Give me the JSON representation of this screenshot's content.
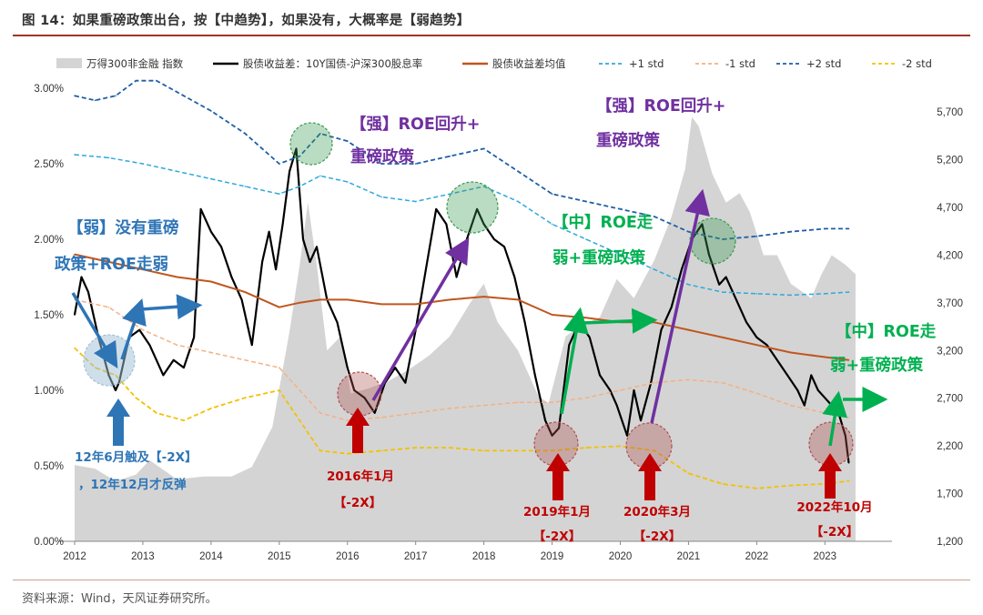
{
  "figure_title": "图 14：如果重磅政策出台，按【中趋势】，如果没有，大概率是【弱趋势】",
  "source": "资料来源：Wind，天风证券研究所。",
  "colors": {
    "area": "#d4d4d4",
    "spread": "#000000",
    "mean": "#c0561e",
    "plus1": "#2ea8dc",
    "minus1": "#f4b183",
    "plus2": "#1f5fa8",
    "minus2": "#f2c200",
    "red_arrow": "#c00000",
    "purple": "#7030a0",
    "green": "#00b050",
    "blue": "#2e75b6"
  },
  "chart_data": {
    "type": "line",
    "x_ticks": [
      "2012",
      "2013",
      "2014",
      "2015",
      "2016",
      "2017",
      "2018",
      "2019",
      "2020",
      "2021",
      "2022",
      "2023"
    ],
    "y_left_ticks": [
      "0.00%",
      "0.50%",
      "1.00%",
      "1.50%",
      "2.00%",
      "2.50%",
      "3.00%"
    ],
    "y_right_ticks": [
      "1,200",
      "1,700",
      "2,200",
      "2,700",
      "3,200",
      "3,700",
      "4,200",
      "4,700",
      "5,200",
      "5,700"
    ],
    "ylim_left": [
      0,
      3.0
    ],
    "ylim_right": [
      1200,
      5950
    ],
    "xlim": [
      2012.0,
      2023.85
    ],
    "legend": [
      "万得300非金融 指数",
      "股债收益差：10Y国债-沪深300股息率",
      "股债收益差均值",
      "+1 std",
      "-1 std",
      "+2 std",
      "-2 std"
    ],
    "series": [
      {
        "name": "万得300非金融 指数",
        "axis": "right",
        "style": "area",
        "x": [
          2012.0,
          2012.3,
          2012.6,
          2012.9,
          2013.1,
          2013.5,
          2013.9,
          2014.3,
          2014.6,
          2014.9,
          2015.0,
          2015.15,
          2015.3,
          2015.42,
          2015.55,
          2015.7,
          2015.9,
          2016.05,
          2016.3,
          2016.6,
          2016.9,
          2017.2,
          2017.5,
          2017.8,
          2018.0,
          2018.2,
          2018.5,
          2018.8,
          2018.95,
          2019.2,
          2019.4,
          2019.7,
          2019.95,
          2020.2,
          2020.5,
          2020.75,
          2020.95,
          2021.05,
          2021.15,
          2021.35,
          2021.55,
          2021.75,
          2021.9,
          2022.1,
          2022.3,
          2022.5,
          2022.8,
          2022.95,
          2023.1,
          2023.3,
          2023.45
        ],
        "y": [
          2000,
          1960,
          1830,
          1900,
          2050,
          1850,
          1880,
          1880,
          1980,
          2400,
          2800,
          3400,
          4100,
          4750,
          4100,
          3200,
          3350,
          2750,
          2800,
          2880,
          3000,
          3150,
          3350,
          3700,
          3900,
          3500,
          3200,
          2720,
          2650,
          3350,
          3450,
          3550,
          3950,
          3750,
          4150,
          4600,
          5100,
          5650,
          5550,
          5050,
          4750,
          4850,
          4650,
          4200,
          4200,
          3900,
          3750,
          4000,
          4200,
          4100,
          4000
        ]
      },
      {
        "name": "股债收益差：10Y国债-沪深300股息率",
        "axis": "left",
        "style": "line",
        "x": [
          2012.0,
          2012.1,
          2012.2,
          2012.35,
          2012.5,
          2012.6,
          2012.65,
          2012.8,
          2012.95,
          2013.1,
          2013.3,
          2013.45,
          2013.6,
          2013.75,
          2013.85,
          2014.0,
          2014.15,
          2014.3,
          2014.45,
          2014.6,
          2014.75,
          2014.85,
          2014.95,
          2015.05,
          2015.15,
          2015.25,
          2015.35,
          2015.45,
          2015.55,
          2015.7,
          2015.85,
          2016.0,
          2016.1,
          2016.25,
          2016.4,
          2016.55,
          2016.7,
          2016.85,
          2017.0,
          2017.15,
          2017.3,
          2017.45,
          2017.6,
          2017.75,
          2017.9,
          2018.0,
          2018.15,
          2018.3,
          2018.45,
          2018.6,
          2018.75,
          2018.9,
          2019.0,
          2019.1,
          2019.25,
          2019.4,
          2019.55,
          2019.7,
          2019.85,
          2019.95,
          2020.1,
          2020.2,
          2020.3,
          2020.45,
          2020.6,
          2020.75,
          2020.9,
          2021.05,
          2021.2,
          2021.3,
          2021.45,
          2021.55,
          2021.7,
          2021.85,
          2022.0,
          2022.15,
          2022.3,
          2022.45,
          2022.6,
          2022.7,
          2022.8,
          2022.9,
          2023.0,
          2023.1,
          2023.2,
          2023.3,
          2023.35
        ],
        "y": [
          1.5,
          1.75,
          1.65,
          1.35,
          1.1,
          1.0,
          1.05,
          1.35,
          1.4,
          1.3,
          1.1,
          1.2,
          1.15,
          1.35,
          2.2,
          2.05,
          1.95,
          1.75,
          1.6,
          1.3,
          1.85,
          2.05,
          1.8,
          2.1,
          2.45,
          2.6,
          2.0,
          1.85,
          1.95,
          1.6,
          1.45,
          1.15,
          1.0,
          0.95,
          0.85,
          1.05,
          1.15,
          1.05,
          1.4,
          1.8,
          2.2,
          2.1,
          1.75,
          2.0,
          2.2,
          2.1,
          2.0,
          1.95,
          1.75,
          1.45,
          1.1,
          0.8,
          0.7,
          0.75,
          1.3,
          1.45,
          1.35,
          1.1,
          1.0,
          0.9,
          0.7,
          1.0,
          0.8,
          1.05,
          1.4,
          1.55,
          1.8,
          2.0,
          2.1,
          1.9,
          1.7,
          1.75,
          1.6,
          1.45,
          1.35,
          1.3,
          1.2,
          1.1,
          1.0,
          0.9,
          1.1,
          1.0,
          0.95,
          0.9,
          0.85,
          0.7,
          0.52
        ]
      },
      {
        "name": "股债收益差均值",
        "axis": "left",
        "style": "line",
        "x": [
          2012.0,
          2012.5,
          2013.0,
          2013.5,
          2014.0,
          2014.5,
          2015.0,
          2015.3,
          2015.6,
          2016.0,
          2016.5,
          2017.0,
          2017.5,
          2018.0,
          2018.5,
          2019.0,
          2019.5,
          2020.0,
          2020.5,
          2021.0,
          2021.5,
          2022.0,
          2022.5,
          2023.0,
          2023.35
        ],
        "y": [
          1.9,
          1.85,
          1.8,
          1.75,
          1.72,
          1.65,
          1.55,
          1.58,
          1.6,
          1.6,
          1.57,
          1.57,
          1.6,
          1.62,
          1.6,
          1.5,
          1.48,
          1.45,
          1.45,
          1.4,
          1.35,
          1.3,
          1.25,
          1.22,
          1.2
        ]
      },
      {
        "name": "+1 std",
        "axis": "left",
        "style": "dash",
        "x": [
          2012.0,
          2012.5,
          2013.0,
          2013.5,
          2014.0,
          2014.5,
          2015.0,
          2015.3,
          2015.6,
          2016.0,
          2016.5,
          2017.0,
          2017.5,
          2018.0,
          2018.5,
          2019.0,
          2019.5,
          2020.0,
          2020.5,
          2021.0,
          2021.5,
          2022.0,
          2022.5,
          2023.0,
          2023.35
        ],
        "y": [
          2.56,
          2.54,
          2.5,
          2.45,
          2.4,
          2.35,
          2.3,
          2.35,
          2.42,
          2.38,
          2.28,
          2.25,
          2.3,
          2.35,
          2.25,
          2.1,
          2.0,
          1.9,
          1.8,
          1.7,
          1.65,
          1.64,
          1.63,
          1.64,
          1.65
        ]
      },
      {
        "name": "-1 std",
        "axis": "left",
        "style": "dash",
        "x": [
          2012.0,
          2012.5,
          2013.0,
          2013.5,
          2014.0,
          2014.5,
          2015.0,
          2015.3,
          2015.6,
          2016.0,
          2016.5,
          2017.0,
          2017.5,
          2018.0,
          2018.5,
          2019.0,
          2019.5,
          2020.0,
          2020.5,
          2021.0,
          2021.5,
          2022.0,
          2022.5,
          2023.0,
          2023.35
        ],
        "y": [
          1.6,
          1.55,
          1.4,
          1.3,
          1.25,
          1.2,
          1.15,
          1.0,
          0.85,
          0.8,
          0.82,
          0.85,
          0.88,
          0.9,
          0.92,
          0.92,
          0.95,
          1.0,
          1.05,
          1.07,
          1.05,
          0.98,
          0.9,
          0.85,
          0.82
        ]
      },
      {
        "name": "+2 std",
        "axis": "left",
        "style": "dash",
        "x": [
          2012.0,
          2012.3,
          2012.6,
          2012.9,
          2013.2,
          2013.6,
          2014.0,
          2014.5,
          2015.0,
          2015.3,
          2015.6,
          2016.0,
          2016.5,
          2017.0,
          2017.5,
          2018.0,
          2018.5,
          2019.0,
          2019.5,
          2020.0,
          2020.5,
          2021.0,
          2021.5,
          2022.0,
          2022.5,
          2023.0,
          2023.35
        ],
        "y": [
          2.95,
          2.92,
          2.95,
          3.05,
          3.05,
          2.95,
          2.85,
          2.7,
          2.5,
          2.55,
          2.7,
          2.65,
          2.5,
          2.5,
          2.55,
          2.6,
          2.45,
          2.3,
          2.25,
          2.2,
          2.15,
          2.05,
          2.0,
          2.02,
          2.05,
          2.07,
          2.07
        ]
      },
      {
        "name": "-2 std",
        "axis": "left",
        "style": "dash",
        "x": [
          2012.0,
          2012.3,
          2012.6,
          2012.9,
          2013.2,
          2013.6,
          2014.0,
          2014.5,
          2015.0,
          2015.3,
          2015.6,
          2016.0,
          2016.5,
          2017.0,
          2017.5,
          2018.0,
          2018.5,
          2019.0,
          2019.5,
          2020.0,
          2020.5,
          2021.0,
          2021.5,
          2022.0,
          2022.5,
          2023.0,
          2023.35
        ],
        "y": [
          1.28,
          1.15,
          1.1,
          0.95,
          0.85,
          0.8,
          0.88,
          0.95,
          1.0,
          0.8,
          0.6,
          0.58,
          0.6,
          0.62,
          0.62,
          0.6,
          0.6,
          0.6,
          0.62,
          0.63,
          0.6,
          0.45,
          0.38,
          0.35,
          0.37,
          0.38,
          0.4
        ]
      }
    ],
    "annotations": [
      {
        "text": "【强】ROE回升+",
        "color": "purple"
      },
      {
        "text": "重磅政策",
        "color": "purple"
      },
      {
        "text": "【强】ROE回升+",
        "color": "purple"
      },
      {
        "text": "重磅政策",
        "color": "purple"
      },
      {
        "text": "【弱】没有重磅",
        "color": "blue"
      },
      {
        "text": "政策+ROE走弱",
        "color": "blue"
      },
      {
        "text": "【中】ROE走",
        "color": "green"
      },
      {
        "text": "弱+重磅政策",
        "color": "green"
      },
      {
        "text": "【中】ROE走",
        "color": "green"
      },
      {
        "text": "弱+重磅政策",
        "color": "green"
      },
      {
        "text": "12年6月触及【-2X】",
        "color": "blue"
      },
      {
        "text": "，12年12月才反弹",
        "color": "blue"
      },
      {
        "text": "2016年1月",
        "color": "red"
      },
      {
        "text": "【-2X】",
        "color": "red"
      },
      {
        "text": "2019年1月",
        "color": "red"
      },
      {
        "text": "【-2X】",
        "color": "red"
      },
      {
        "text": "2020年3月",
        "color": "red"
      },
      {
        "text": "【-2X】",
        "color": "red"
      },
      {
        "text": "2022年10月",
        "color": "red"
      },
      {
        "text": "【-2X】",
        "color": "red"
      }
    ]
  }
}
